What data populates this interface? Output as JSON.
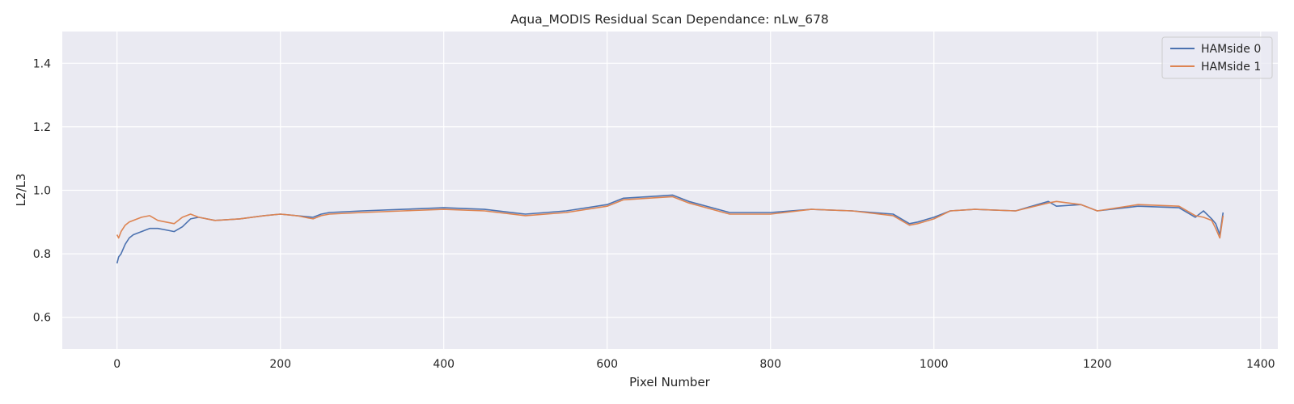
{
  "chart_data": {
    "type": "line",
    "title": "Aqua_MODIS Residual Scan Dependance: nLw_678",
    "xlabel": "Pixel Number",
    "ylabel": "L2/L3",
    "xlim": [
      -67,
      1421
    ],
    "ylim": [
      0.5,
      1.5
    ],
    "x_ticks": [
      0,
      200,
      400,
      600,
      800,
      1000,
      1200,
      1400
    ],
    "x_tick_labels": [
      "0",
      "200",
      "400",
      "600",
      "800",
      "1000",
      "1200",
      "1400"
    ],
    "y_ticks": [
      0.6,
      0.8,
      1.0,
      1.2,
      1.4
    ],
    "y_tick_labels": [
      "0.6",
      "0.8",
      "1.0",
      "1.2",
      "1.4"
    ],
    "grid": true,
    "legend_position": "top-right",
    "colors": {
      "background": "#EAEAF2",
      "grid": "#FFFFFF",
      "series0": "#4C72B0",
      "series1": "#DD8452"
    },
    "x": [
      0,
      2,
      5,
      10,
      15,
      20,
      30,
      40,
      50,
      60,
      70,
      80,
      90,
      100,
      120,
      150,
      180,
      200,
      220,
      240,
      250,
      260,
      300,
      350,
      400,
      450,
      500,
      550,
      600,
      620,
      650,
      680,
      700,
      750,
      800,
      850,
      900,
      950,
      970,
      980,
      1000,
      1020,
      1050,
      1100,
      1140,
      1150,
      1180,
      1200,
      1250,
      1300,
      1320,
      1330,
      1340,
      1345,
      1350,
      1354
    ],
    "series": [
      {
        "name": "HAMside 0",
        "values": [
          0.77,
          0.79,
          0.8,
          0.83,
          0.85,
          0.86,
          0.87,
          0.88,
          0.88,
          0.875,
          0.87,
          0.885,
          0.91,
          0.915,
          0.905,
          0.91,
          0.92,
          0.925,
          0.92,
          0.915,
          0.925,
          0.93,
          0.935,
          0.94,
          0.945,
          0.94,
          0.925,
          0.935,
          0.955,
          0.975,
          0.98,
          0.985,
          0.965,
          0.93,
          0.93,
          0.94,
          0.935,
          0.925,
          0.895,
          0.9,
          0.915,
          0.935,
          0.94,
          0.935,
          0.965,
          0.95,
          0.955,
          0.935,
          0.95,
          0.945,
          0.915,
          0.935,
          0.91,
          0.895,
          0.86,
          0.93
        ]
      },
      {
        "name": "HAMside 1",
        "values": [
          0.86,
          0.85,
          0.87,
          0.89,
          0.9,
          0.905,
          0.915,
          0.92,
          0.905,
          0.9,
          0.895,
          0.915,
          0.925,
          0.915,
          0.905,
          0.91,
          0.92,
          0.925,
          0.92,
          0.91,
          0.92,
          0.925,
          0.93,
          0.935,
          0.94,
          0.935,
          0.92,
          0.93,
          0.95,
          0.97,
          0.975,
          0.98,
          0.96,
          0.925,
          0.925,
          0.94,
          0.935,
          0.92,
          0.89,
          0.895,
          0.91,
          0.935,
          0.94,
          0.935,
          0.96,
          0.965,
          0.955,
          0.935,
          0.955,
          0.95,
          0.92,
          0.915,
          0.905,
          0.88,
          0.85,
          0.92
        ]
      }
    ]
  }
}
